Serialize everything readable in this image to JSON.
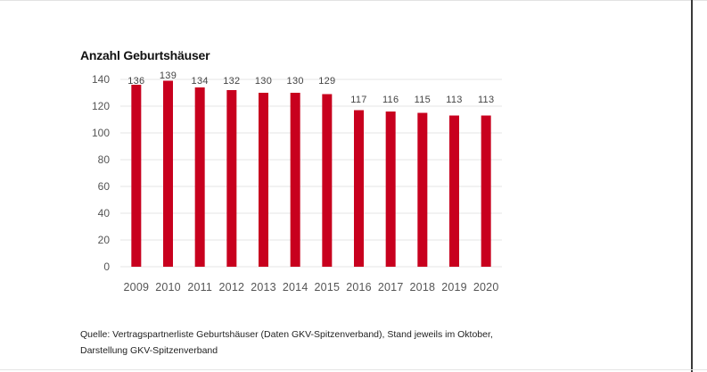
{
  "chart_data": {
    "type": "bar",
    "title": "Anzahl Geburtshäuser",
    "xlabel": "",
    "ylabel": "",
    "categories": [
      "2009",
      "2010",
      "2011",
      "2012",
      "2013",
      "2014",
      "2015",
      "2016",
      "2017",
      "2018",
      "2019",
      "2020"
    ],
    "values": [
      136,
      139,
      134,
      132,
      130,
      130,
      129,
      117,
      116,
      115,
      113,
      113
    ],
    "ylim": [
      0,
      140
    ],
    "yticks": [
      "0",
      "20",
      "40",
      "60",
      "80",
      "100",
      "120",
      "140"
    ],
    "grid": true,
    "bar_color": "#c8001e",
    "grid_color": "#e6e6e6"
  },
  "source": {
    "line1": "Quelle: Vertragspartnerliste Geburtshäuser (Daten GKV-Spitzenverband), Stand jeweils im Oktober,",
    "line2": "Darstellung GKV-Spitzenverband"
  }
}
